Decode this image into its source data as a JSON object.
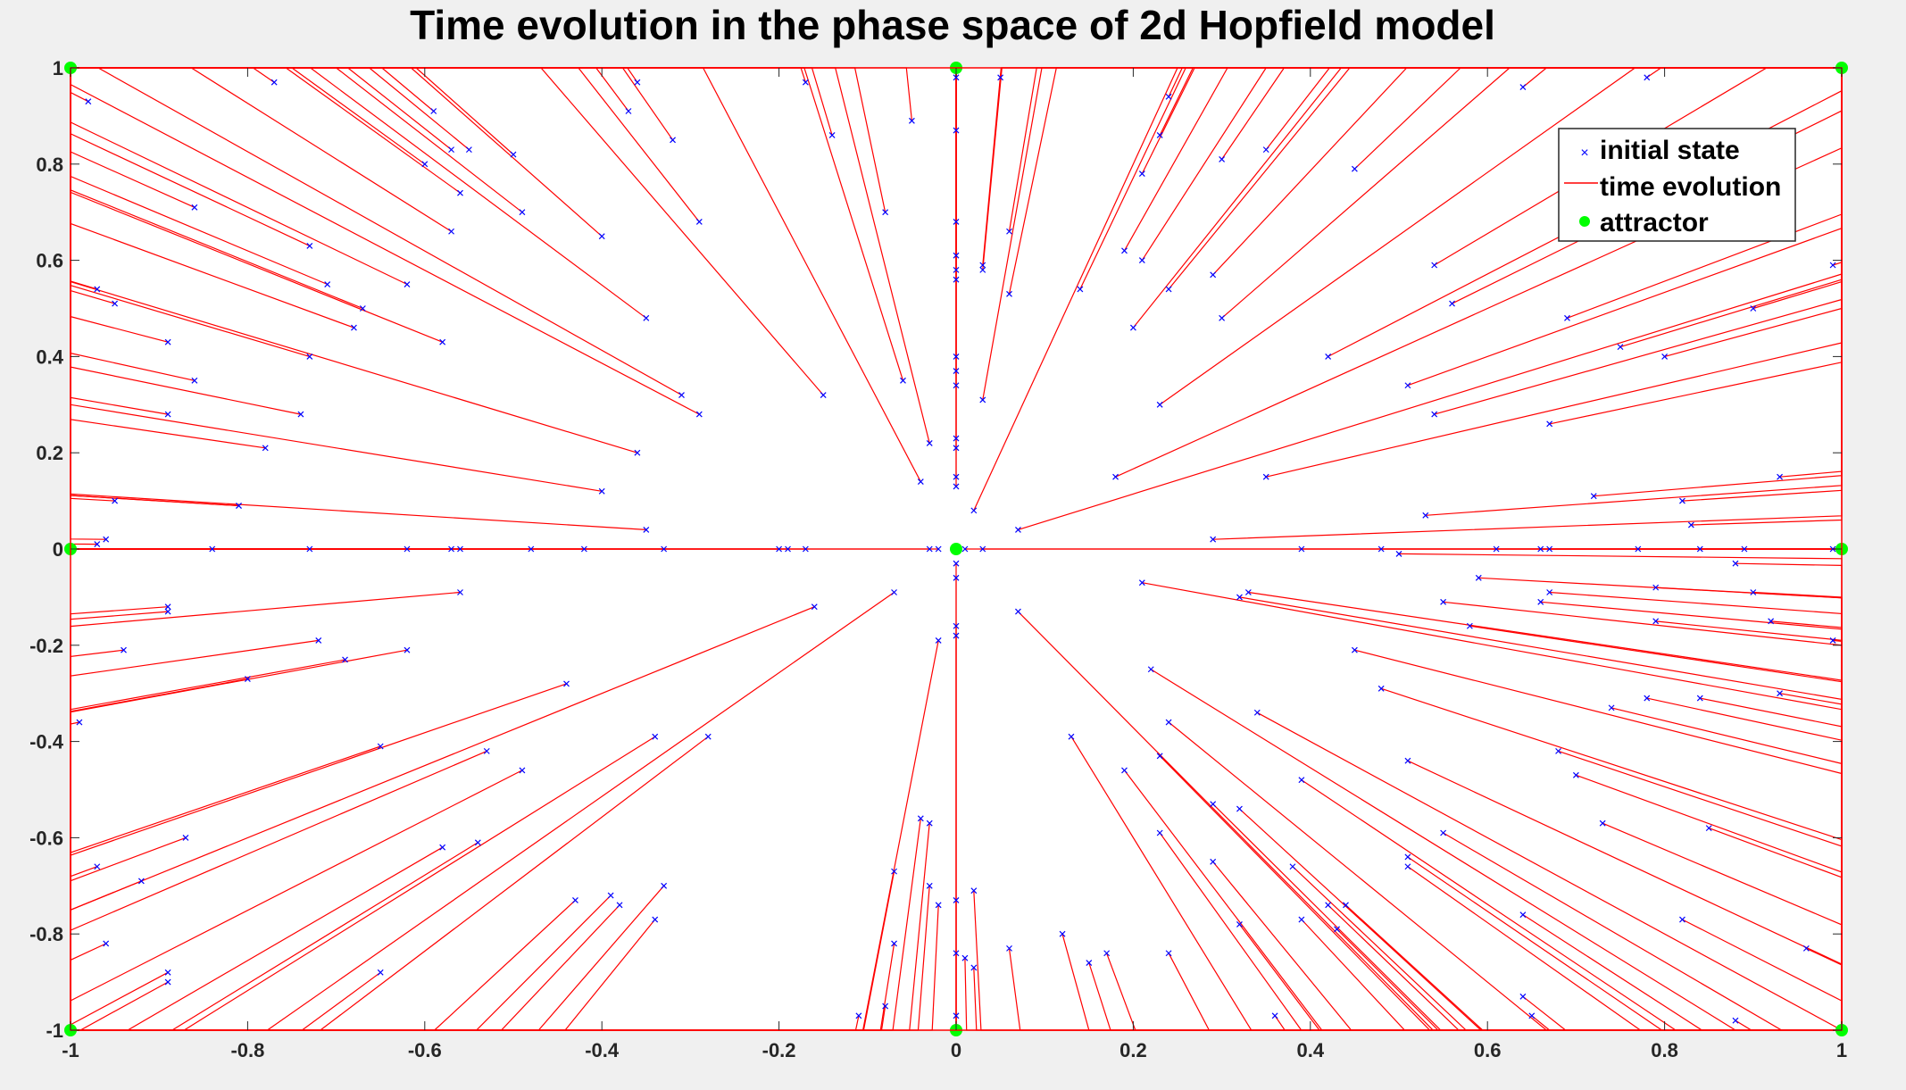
{
  "chart_data": {
    "type": "scatter",
    "title": "Time evolution in the phase space of 2d Hopfield model",
    "xlabel": "",
    "ylabel": "",
    "xlim": [
      -1,
      1
    ],
    "ylim": [
      -1,
      1
    ],
    "x_ticks": [
      "-1",
      "-0.8",
      "-0.6",
      "-0.4",
      "-0.2",
      "0",
      "0.2",
      "0.4",
      "0.6",
      "0.8",
      "1"
    ],
    "y_ticks": [
      "1",
      "0.8",
      "0.6",
      "0.4",
      "0.2",
      "0",
      "-0.2",
      "-0.4",
      "-0.6",
      "-0.8",
      "-1"
    ],
    "grid": false,
    "legend_position": "top-right",
    "colors": {
      "initial_state": "#0000ff",
      "time_evolution": "#ff0000",
      "attractor": "#00ff00",
      "axes_background": "#ffffff",
      "figure_background": "#f0f0f0"
    },
    "series": [
      {
        "name": "initial state",
        "marker": "x"
      },
      {
        "name": "time evolution",
        "marker": "line"
      },
      {
        "name": "attractor",
        "marker": "filled-circle"
      }
    ],
    "attractors": [
      [
        -1,
        1
      ],
      [
        0,
        1
      ],
      [
        1,
        1
      ],
      [
        -1,
        0
      ],
      [
        0,
        0
      ],
      [
        1,
        0
      ],
      [
        -1,
        -1
      ],
      [
        0,
        -1
      ],
      [
        1,
        -1
      ]
    ],
    "initial_states": [
      [
        -0.98,
        0.93
      ],
      [
        -0.77,
        0.97
      ],
      [
        -0.59,
        0.91
      ],
      [
        -0.57,
        0.83
      ],
      [
        -0.55,
        0.83
      ],
      [
        -0.5,
        0.82
      ],
      [
        -0.6,
        0.8
      ],
      [
        -0.56,
        0.74
      ],
      [
        -0.49,
        0.7
      ],
      [
        -0.86,
        0.71
      ],
      [
        -0.73,
        0.63
      ],
      [
        -0.57,
        0.66
      ],
      [
        -0.4,
        0.65
      ],
      [
        -0.71,
        0.55
      ],
      [
        -0.62,
        0.55
      ],
      [
        -0.67,
        0.5
      ],
      [
        -0.68,
        0.46
      ],
      [
        -0.35,
        0.48
      ],
      [
        -0.89,
        0.43
      ],
      [
        -0.58,
        0.43
      ],
      [
        -0.73,
        0.4
      ],
      [
        -0.86,
        0.35
      ],
      [
        -0.31,
        0.32
      ],
      [
        -0.29,
        0.28
      ],
      [
        -0.74,
        0.28
      ],
      [
        -0.89,
        0.28
      ],
      [
        -0.78,
        0.21
      ],
      [
        -0.36,
        0.2
      ],
      [
        -0.4,
        0.12
      ],
      [
        -0.95,
        0.1
      ],
      [
        -0.81,
        0.09
      ],
      [
        -0.35,
        0.04
      ],
      [
        -0.97,
        0.54
      ],
      [
        -0.95,
        0.51
      ],
      [
        -0.36,
        0.97
      ],
      [
        -0.37,
        0.91
      ],
      [
        -0.32,
        0.85
      ],
      [
        -0.29,
        0.68
      ],
      [
        -0.17,
        0.97
      ],
      [
        -0.14,
        0.86
      ],
      [
        -0.08,
        0.7
      ],
      [
        -0.05,
        0.89
      ],
      [
        -0.15,
        0.32
      ],
      [
        -0.06,
        0.35
      ],
      [
        -0.03,
        0.22
      ],
      [
        -0.04,
        0.14
      ],
      [
        0,
        0.98
      ],
      [
        0,
        0.87
      ],
      [
        0,
        0.68
      ],
      [
        0,
        0.61
      ],
      [
        0,
        0.58
      ],
      [
        0,
        0.56
      ],
      [
        0,
        0.4
      ],
      [
        0,
        0.37
      ],
      [
        0,
        0.34
      ],
      [
        0,
        0.23
      ],
      [
        0,
        0.21
      ],
      [
        0,
        0.15
      ],
      [
        0,
        0.13
      ],
      [
        0.02,
        0.08
      ],
      [
        0.05,
        0.98
      ],
      [
        0.06,
        0.66
      ],
      [
        0.06,
        0.53
      ],
      [
        0.03,
        0.59
      ],
      [
        0.03,
        0.58
      ],
      [
        0.03,
        0.31
      ],
      [
        0.07,
        0.04
      ],
      [
        0.14,
        0.54
      ],
      [
        0.19,
        0.62
      ],
      [
        0.2,
        0.46
      ],
      [
        0.21,
        0.6
      ],
      [
        0.23,
        0.86
      ],
      [
        0.24,
        0.94
      ],
      [
        0.24,
        0.54
      ],
      [
        0.23,
        0.3
      ],
      [
        0.21,
        0.78
      ],
      [
        0.18,
        0.15
      ],
      [
        0.3,
        0.81
      ],
      [
        0.29,
        0.57
      ],
      [
        0.3,
        0.48
      ],
      [
        0.35,
        0.83
      ],
      [
        0.35,
        0.15
      ],
      [
        0.29,
        0.02
      ],
      [
        0.42,
        0.4
      ],
      [
        0.45,
        0.79
      ],
      [
        0.54,
        0.59
      ],
      [
        0.56,
        0.51
      ],
      [
        0.51,
        0.34
      ],
      [
        0.54,
        0.28
      ],
      [
        0.64,
        0.96
      ],
      [
        0.69,
        0.48
      ],
      [
        0.75,
        0.42
      ],
      [
        0.78,
        0.98
      ],
      [
        0.8,
        0.4
      ],
      [
        0.9,
        0.5
      ],
      [
        0.67,
        0.26
      ],
      [
        0.72,
        0.11
      ],
      [
        0.82,
        0.1
      ],
      [
        0.83,
        0.05
      ],
      [
        0.93,
        0.15
      ],
      [
        0.99,
        0.59
      ],
      [
        0.53,
        0.07
      ],
      [
        -0.81,
        0.09
      ],
      [
        -0.97,
        0.01
      ],
      [
        -0.96,
        0.02
      ],
      [
        -0.84,
        0
      ],
      [
        -0.73,
        0
      ],
      [
        -0.62,
        0
      ],
      [
        -0.57,
        0
      ],
      [
        -0.56,
        0
      ],
      [
        -0.48,
        0
      ],
      [
        -0.42,
        0
      ],
      [
        -0.33,
        0
      ],
      [
        -0.2,
        0
      ],
      [
        -0.19,
        0
      ],
      [
        -0.17,
        0
      ],
      [
        -0.03,
        0
      ],
      [
        -0.02,
        0
      ],
      [
        0.01,
        0
      ],
      [
        0.03,
        0
      ],
      [
        0.39,
        0
      ],
      [
        0.48,
        0
      ],
      [
        0.5,
        -0.01
      ],
      [
        0.61,
        0
      ],
      [
        0.66,
        0
      ],
      [
        0.67,
        0
      ],
      [
        0.77,
        0
      ],
      [
        0.84,
        0
      ],
      [
        0.89,
        0
      ],
      [
        0.88,
        -0.03
      ],
      [
        0.99,
        0
      ],
      [
        -0.89,
        -0.12
      ],
      [
        -0.89,
        -0.13
      ],
      [
        -0.94,
        -0.21
      ],
      [
        -0.72,
        -0.19
      ],
      [
        -0.69,
        -0.23
      ],
      [
        -0.8,
        -0.27
      ],
      [
        -0.62,
        -0.21
      ],
      [
        -0.56,
        -0.09
      ],
      [
        -0.99,
        -0.36
      ],
      [
        -0.44,
        -0.28
      ],
      [
        -0.53,
        -0.42
      ],
      [
        -0.65,
        -0.41
      ],
      [
        -0.34,
        -0.39
      ],
      [
        -0.28,
        -0.39
      ],
      [
        -0.16,
        -0.12
      ],
      [
        -0.07,
        -0.09
      ],
      [
        -0.97,
        -0.66
      ],
      [
        -0.92,
        -0.69
      ],
      [
        -0.87,
        -0.6
      ],
      [
        -0.58,
        -0.62
      ],
      [
        -0.54,
        -0.61
      ],
      [
        -0.49,
        -0.46
      ],
      [
        -0.96,
        -0.82
      ],
      [
        -0.89,
        -0.88
      ],
      [
        -0.89,
        -0.9
      ],
      [
        -0.65,
        -0.88
      ],
      [
        -0.43,
        -0.73
      ],
      [
        -0.39,
        -0.72
      ],
      [
        -0.38,
        -0.74
      ],
      [
        -0.34,
        -0.77
      ],
      [
        -0.33,
        -0.7
      ],
      [
        -0.11,
        -0.97
      ],
      [
        -0.08,
        -0.95
      ],
      [
        -0.07,
        -0.67
      ],
      [
        -0.07,
        -0.82
      ],
      [
        -0.04,
        -0.56
      ],
      [
        -0.03,
        -0.57
      ],
      [
        -0.03,
        -0.7
      ],
      [
        -0.02,
        -0.74
      ],
      [
        -0.02,
        -0.19
      ],
      [
        0,
        -0.03
      ],
      [
        0,
        -0.06
      ],
      [
        0,
        -0.16
      ],
      [
        0,
        -0.18
      ],
      [
        0,
        -0.73
      ],
      [
        0,
        -0.84
      ],
      [
        0,
        -0.97
      ],
      [
        0.01,
        -0.85
      ],
      [
        0.02,
        -0.71
      ],
      [
        0.02,
        -0.87
      ],
      [
        0.07,
        -0.13
      ],
      [
        0.06,
        -0.83
      ],
      [
        0.12,
        -0.8
      ],
      [
        0.13,
        -0.39
      ],
      [
        0.15,
        -0.86
      ],
      [
        0.17,
        -0.84
      ],
      [
        0.19,
        -0.46
      ],
      [
        0.21,
        -0.07
      ],
      [
        0.22,
        -0.25
      ],
      [
        0.23,
        -0.43
      ],
      [
        0.24,
        -0.36
      ],
      [
        0.23,
        -0.59
      ],
      [
        0.24,
        -0.84
      ],
      [
        0.29,
        -0.53
      ],
      [
        0.29,
        -0.65
      ],
      [
        0.32,
        -0.1
      ],
      [
        0.33,
        -0.09
      ],
      [
        0.32,
        -0.54
      ],
      [
        0.32,
        -0.78
      ],
      [
        0.34,
        -0.34
      ],
      [
        0.36,
        -0.97
      ],
      [
        0.39,
        -0.48
      ],
      [
        0.39,
        -0.77
      ],
      [
        0.38,
        -0.66
      ],
      [
        0.42,
        -0.74
      ],
      [
        0.43,
        -0.79
      ],
      [
        0.44,
        -0.74
      ],
      [
        0.45,
        -0.21
      ],
      [
        0.48,
        -0.29
      ],
      [
        0.51,
        -0.44
      ],
      [
        0.51,
        -0.66
      ],
      [
        0.51,
        -0.64
      ],
      [
        0.55,
        -0.59
      ],
      [
        0.55,
        -0.11
      ],
      [
        0.58,
        -0.16
      ],
      [
        0.59,
        -0.06
      ],
      [
        0.64,
        -0.93
      ],
      [
        0.64,
        -0.76
      ],
      [
        0.65,
        -0.97
      ],
      [
        0.66,
        -0.11
      ],
      [
        0.67,
        -0.09
      ],
      [
        0.68,
        -0.42
      ],
      [
        0.7,
        -0.47
      ],
      [
        0.73,
        -0.57
      ],
      [
        0.74,
        -0.33
      ],
      [
        0.78,
        -0.31
      ],
      [
        0.79,
        -0.08
      ],
      [
        0.79,
        -0.15
      ],
      [
        0.82,
        -0.77
      ],
      [
        0.84,
        -0.31
      ],
      [
        0.85,
        -0.58
      ],
      [
        0.88,
        -0.98
      ],
      [
        0.9,
        -0.09
      ],
      [
        0.92,
        -0.15
      ],
      [
        0.93,
        -0.3
      ],
      [
        0.96,
        -0.83
      ],
      [
        0.99,
        -0.19
      ]
    ]
  }
}
